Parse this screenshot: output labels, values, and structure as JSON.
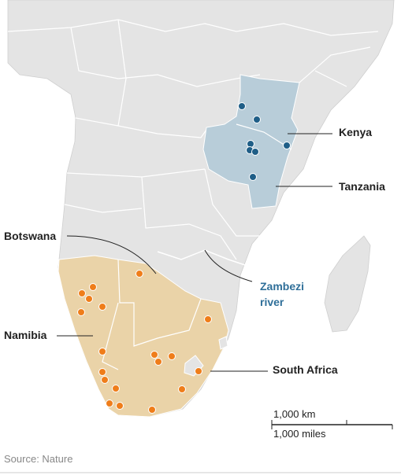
{
  "labels": {
    "kenya": "Kenya",
    "tanzania": "Tanzania",
    "botswana": "Botswana",
    "namibia": "Namibia",
    "zambezi": [
      "Zambezi",
      "river"
    ],
    "south_africa": "South Africa"
  },
  "scale": {
    "km": "1,000 km",
    "miles": "1,000 miles"
  },
  "source": "Source: Nature"
}
